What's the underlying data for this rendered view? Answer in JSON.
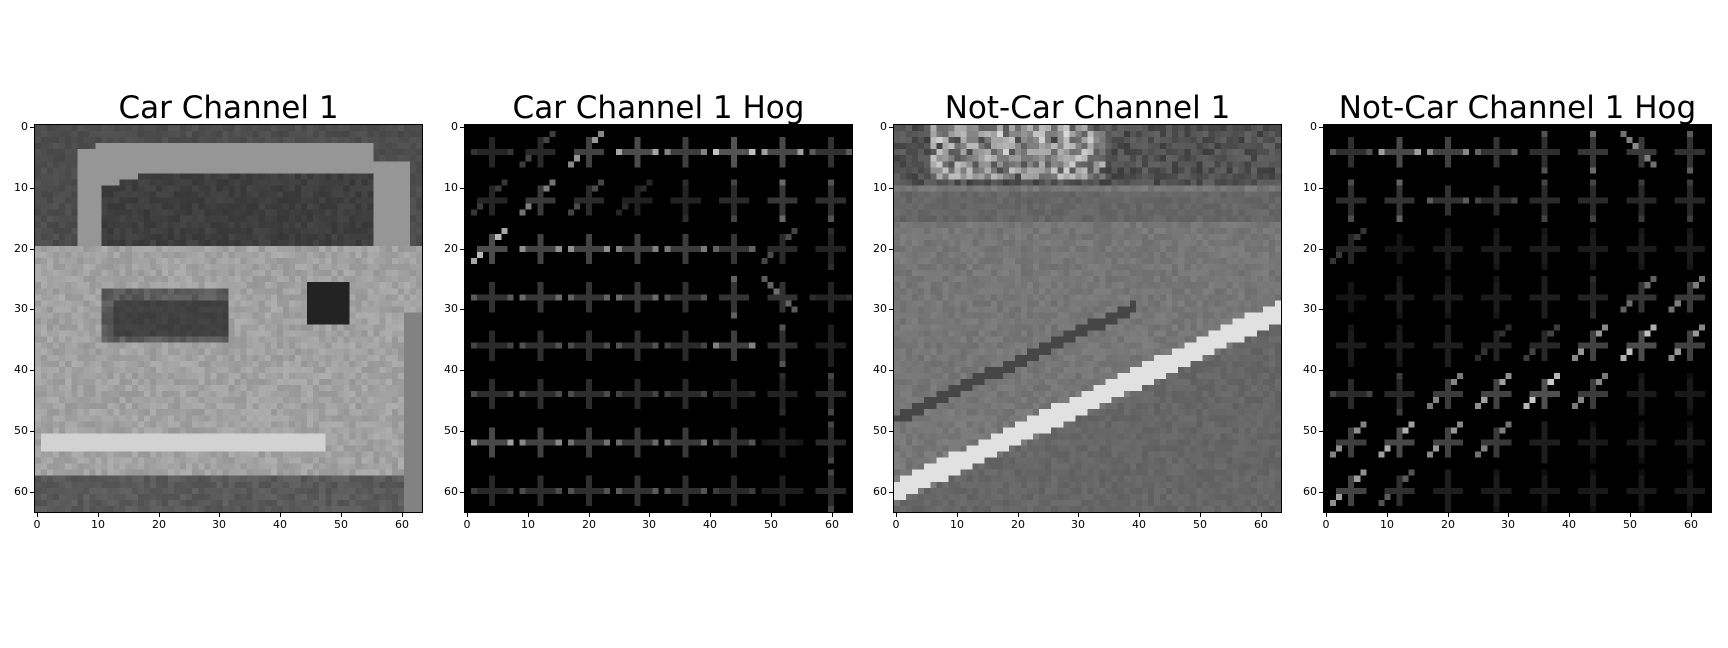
{
  "figure": {
    "panels": [
      {
        "id": "car",
        "title": "Car Channel 1",
        "kind": "car-image"
      },
      {
        "id": "car-hog",
        "title": "Car Channel 1 Hog",
        "kind": "car-hog"
      },
      {
        "id": "notcar",
        "title": "Not-Car Channel 1",
        "kind": "road-image"
      },
      {
        "id": "notcar-hog",
        "title": "Not-Car Channel 1 Hog",
        "kind": "road-hog"
      }
    ],
    "x_ticks": [
      "0",
      "10",
      "20",
      "30",
      "40",
      "50",
      "60"
    ],
    "y_ticks": [
      "0",
      "10",
      "20",
      "30",
      "40",
      "50",
      "60"
    ],
    "image_size": 64
  }
}
